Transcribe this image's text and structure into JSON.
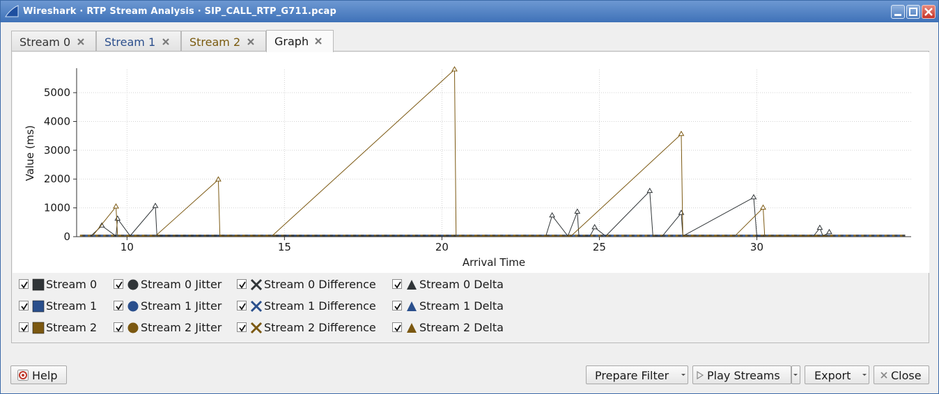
{
  "window": {
    "title": "Wireshark · RTP Stream Analysis · SIP_CALL_RTP_G711.pcap"
  },
  "tabs": [
    {
      "label": "Stream 0",
      "color": "#333333"
    },
    {
      "label": "Stream 1",
      "color": "#2b4e8c"
    },
    {
      "label": "Stream 2",
      "color": "#7a5a0e"
    },
    {
      "label": "Graph",
      "color": "#1a1a1a",
      "active": true
    }
  ],
  "colors": {
    "stream0": "#303538",
    "stream1": "#2a4f8c",
    "stream2": "#7b5811"
  },
  "chart_data": {
    "type": "line",
    "xlabel": "Arrival Time",
    "ylabel": "Value (ms)",
    "xlim": [
      8.4,
      34.9
    ],
    "ylim": [
      0,
      5800
    ],
    "x_ticks": [
      "10",
      "15",
      "20",
      "25",
      "30"
    ],
    "y_ticks": [
      "0",
      "1000",
      "2000",
      "3000",
      "4000",
      "5000"
    ],
    "grid": true,
    "series": [
      {
        "name": "Stream 0 Delta",
        "color": "#303538",
        "x": [
          8.85,
          9.2,
          9.65,
          9.7,
          10.1,
          10.9,
          10.95,
          23.3,
          23.5,
          24.0,
          24.3,
          24.35,
          24.7,
          24.85,
          25.2,
          26.6,
          26.7,
          27.0,
          27.6,
          27.65,
          29.9,
          30.0,
          31.8,
          32.0,
          32.1,
          32.3
        ],
        "y": [
          20,
          380,
          20,
          620,
          30,
          1060,
          30,
          20,
          730,
          20,
          860,
          20,
          20,
          320,
          20,
          1580,
          20,
          20,
          820,
          20,
          1360,
          20,
          20,
          300,
          20,
          150
        ]
      },
      {
        "name": "Stream 2 Delta",
        "color": "#7b5811",
        "x": [
          8.9,
          9.65,
          9.7,
          10.9,
          12.9,
          12.95,
          14.6,
          20.4,
          20.45,
          24.1,
          27.6,
          27.65,
          29.3,
          30.2,
          30.25,
          32.4
        ],
        "y": [
          20,
          1040,
          20,
          20,
          1980,
          20,
          20,
          5800,
          20,
          20,
          3560,
          20,
          20,
          1000,
          20,
          20
        ]
      }
    ]
  },
  "legend": {
    "rows": [
      [
        {
          "label": "Stream 0",
          "stream": "stream0",
          "shape": "square"
        },
        {
          "label": "Stream 0 Jitter",
          "stream": "stream0",
          "shape": "circle"
        },
        {
          "label": "Stream 0 Difference",
          "stream": "stream0",
          "shape": "cross"
        },
        {
          "label": "Stream 0 Delta",
          "stream": "stream0",
          "shape": "triangle"
        }
      ],
      [
        {
          "label": "Stream 1",
          "stream": "stream1",
          "shape": "square"
        },
        {
          "label": "Stream 1 Jitter",
          "stream": "stream1",
          "shape": "circle"
        },
        {
          "label": "Stream 1 Difference",
          "stream": "stream1",
          "shape": "cross"
        },
        {
          "label": "Stream 1 Delta",
          "stream": "stream1",
          "shape": "triangle"
        }
      ],
      [
        {
          "label": "Stream 2",
          "stream": "stream2",
          "shape": "square"
        },
        {
          "label": "Stream 2 Jitter",
          "stream": "stream2",
          "shape": "circle"
        },
        {
          "label": "Stream 2 Difference",
          "stream": "stream2",
          "shape": "cross"
        },
        {
          "label": "Stream 2 Delta",
          "stream": "stream2",
          "shape": "triangle"
        }
      ]
    ]
  },
  "buttons": {
    "help": "Help",
    "prepare_filter": "Prepare Filter",
    "play_streams": "Play Streams",
    "export": "Export",
    "close": "Close"
  }
}
